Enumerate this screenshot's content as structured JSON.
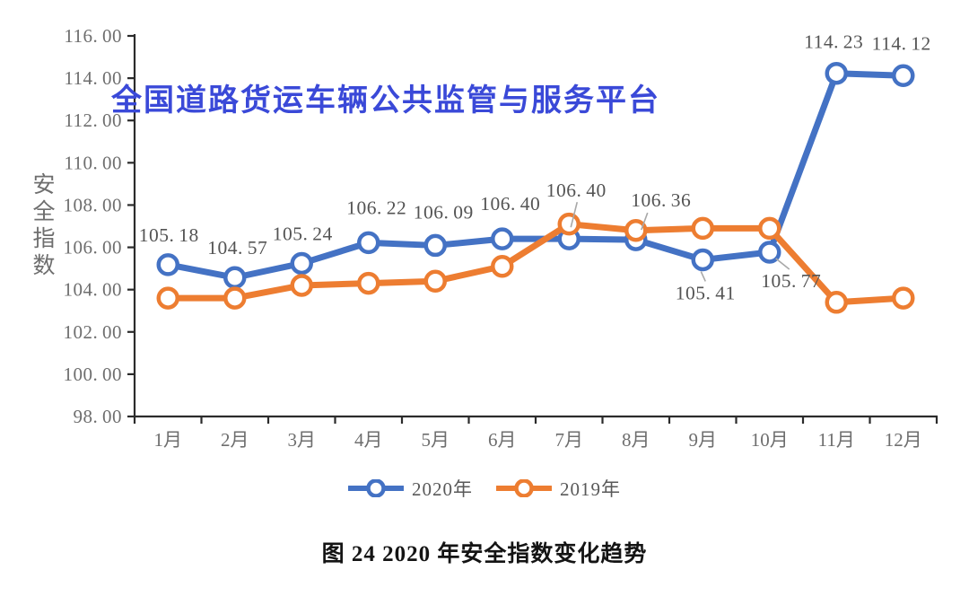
{
  "watermark": "全国道路货运车辆公共监管与服务平台",
  "caption": "图 24 2020 年安全指数变化趋势",
  "colors": {
    "watermark": "#3A49D8",
    "axis": "#2B2B2B",
    "tick_text": "#6E6E6E",
    "data_label": "#545454",
    "leader": "#A8A8A8",
    "caption": "#141414",
    "marker_fill": "#FFFFFF",
    "series_2020": "#4472C4",
    "series_2019": "#ED7D31"
  },
  "chart_data": {
    "type": "line",
    "title": "",
    "ylabel": "安全指数",
    "xlabel": "",
    "categories": [
      "1月",
      "2月",
      "3月",
      "4月",
      "5月",
      "6月",
      "7月",
      "8月",
      "9月",
      "10月",
      "11月",
      "12月"
    ],
    "series": [
      {
        "name": "2020年",
        "color": "#4472C4",
        "values": [
          105.18,
          104.57,
          105.24,
          106.22,
          106.09,
          106.4,
          106.4,
          106.36,
          105.41,
          105.77,
          114.23,
          114.12
        ],
        "data_labels": [
          "105.18",
          "104.57",
          "105.24",
          "106.22",
          "106.09",
          "106.40",
          "106.40",
          "106.36",
          "105.41",
          "105.77",
          "114.23",
          "114.12"
        ]
      },
      {
        "name": "2019年",
        "color": "#ED7D31",
        "values": [
          103.6,
          103.6,
          104.2,
          104.3,
          104.4,
          105.1,
          107.1,
          106.8,
          106.9,
          106.9,
          103.4,
          103.6
        ],
        "data_labels": []
      }
    ],
    "ylim": [
      98,
      116
    ],
    "ytick_step": 2,
    "yticks": [
      "116.00",
      "114.00",
      "112.00",
      "110.00",
      "108.00",
      "106.00",
      "104.00",
      "102.00",
      "100.00",
      "98.00"
    ],
    "grid": false,
    "legend_position": "bottom"
  }
}
